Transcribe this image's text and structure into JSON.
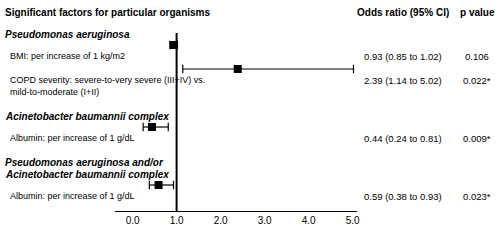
{
  "chart_data": {
    "type": "forest",
    "title": "Significant factors for particular organisms",
    "columns": [
      "Odds ratio (95% CI)",
      "p value"
    ],
    "xlim": [
      -0.4,
      5.1
    ],
    "xticks": [
      {
        "value": 0,
        "label": "0.0"
      },
      {
        "value": 1,
        "label": "1.0"
      },
      {
        "value": 2,
        "label": "2.0"
      },
      {
        "value": 3,
        "label": "3.0"
      },
      {
        "value": 4,
        "label": "4.0"
      },
      {
        "value": 5,
        "label": "5.0"
      }
    ],
    "grid": false,
    "reference_line": 1,
    "color": "#000000",
    "marker": "square",
    "groups": [
      {
        "name": [
          "Pseudomonas aeruginosa"
        ],
        "rows": [
          {
            "label": [
              "BMI: per increase of 1 kg/m2"
            ],
            "value": 0.93,
            "ci": [
              0.85,
              1.02
            ],
            "value_label": "0.93 (0.85 to 1.02)",
            "p_value": "0.106"
          },
          {
            "label": [
              "COPD severity: severe-to-very severe (III+IV) vs.",
              "mild-to-moderate (I+II)"
            ],
            "value": 2.39,
            "ci": [
              1.14,
              5.02
            ],
            "value_label": "2.39 (1.14 to 5.02)",
            "p_value": "0.022*"
          }
        ]
      },
      {
        "name": [
          "Acinetobacter baumannii complex"
        ],
        "rows": [
          {
            "label": [
              "Albumin: per increase of 1 g/dL"
            ],
            "value": 0.44,
            "ci": [
              0.24,
              0.81
            ],
            "value_label": "0.44 (0.24 to 0.81)",
            "p_value": "0.009*"
          }
        ]
      },
      {
        "name": [
          "Pseudomonas aeruginosa and/or",
          "Acinetobacter baumannii complex"
        ],
        "rows": [
          {
            "label": [
              "Albumin: per increase of 1 g/dL"
            ],
            "value": 0.59,
            "ci": [
              0.38,
              0.93
            ],
            "value_label": "0.59 (0.38 to 0.93)",
            "p_value": "0.023*"
          }
        ]
      }
    ]
  }
}
